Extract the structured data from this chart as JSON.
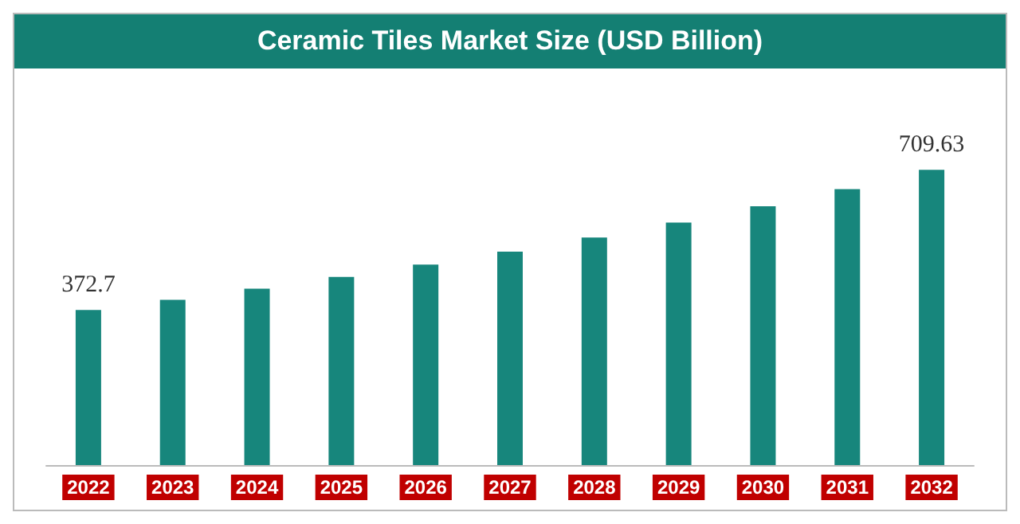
{
  "chart_data": {
    "type": "bar",
    "title": "Ceramic Tiles Market Size (USD Billion)",
    "categories": [
      "2022",
      "2023",
      "2024",
      "2025",
      "2026",
      "2027",
      "2028",
      "2029",
      "2030",
      "2031",
      "2032"
    ],
    "values": [
      372.7,
      397,
      424,
      452,
      482,
      513,
      547,
      583,
      622,
      663,
      709.63
    ],
    "value_labels": [
      "372.7",
      null,
      null,
      null,
      null,
      null,
      null,
      null,
      null,
      null,
      "709.63"
    ],
    "color": "#17867c"
  }
}
